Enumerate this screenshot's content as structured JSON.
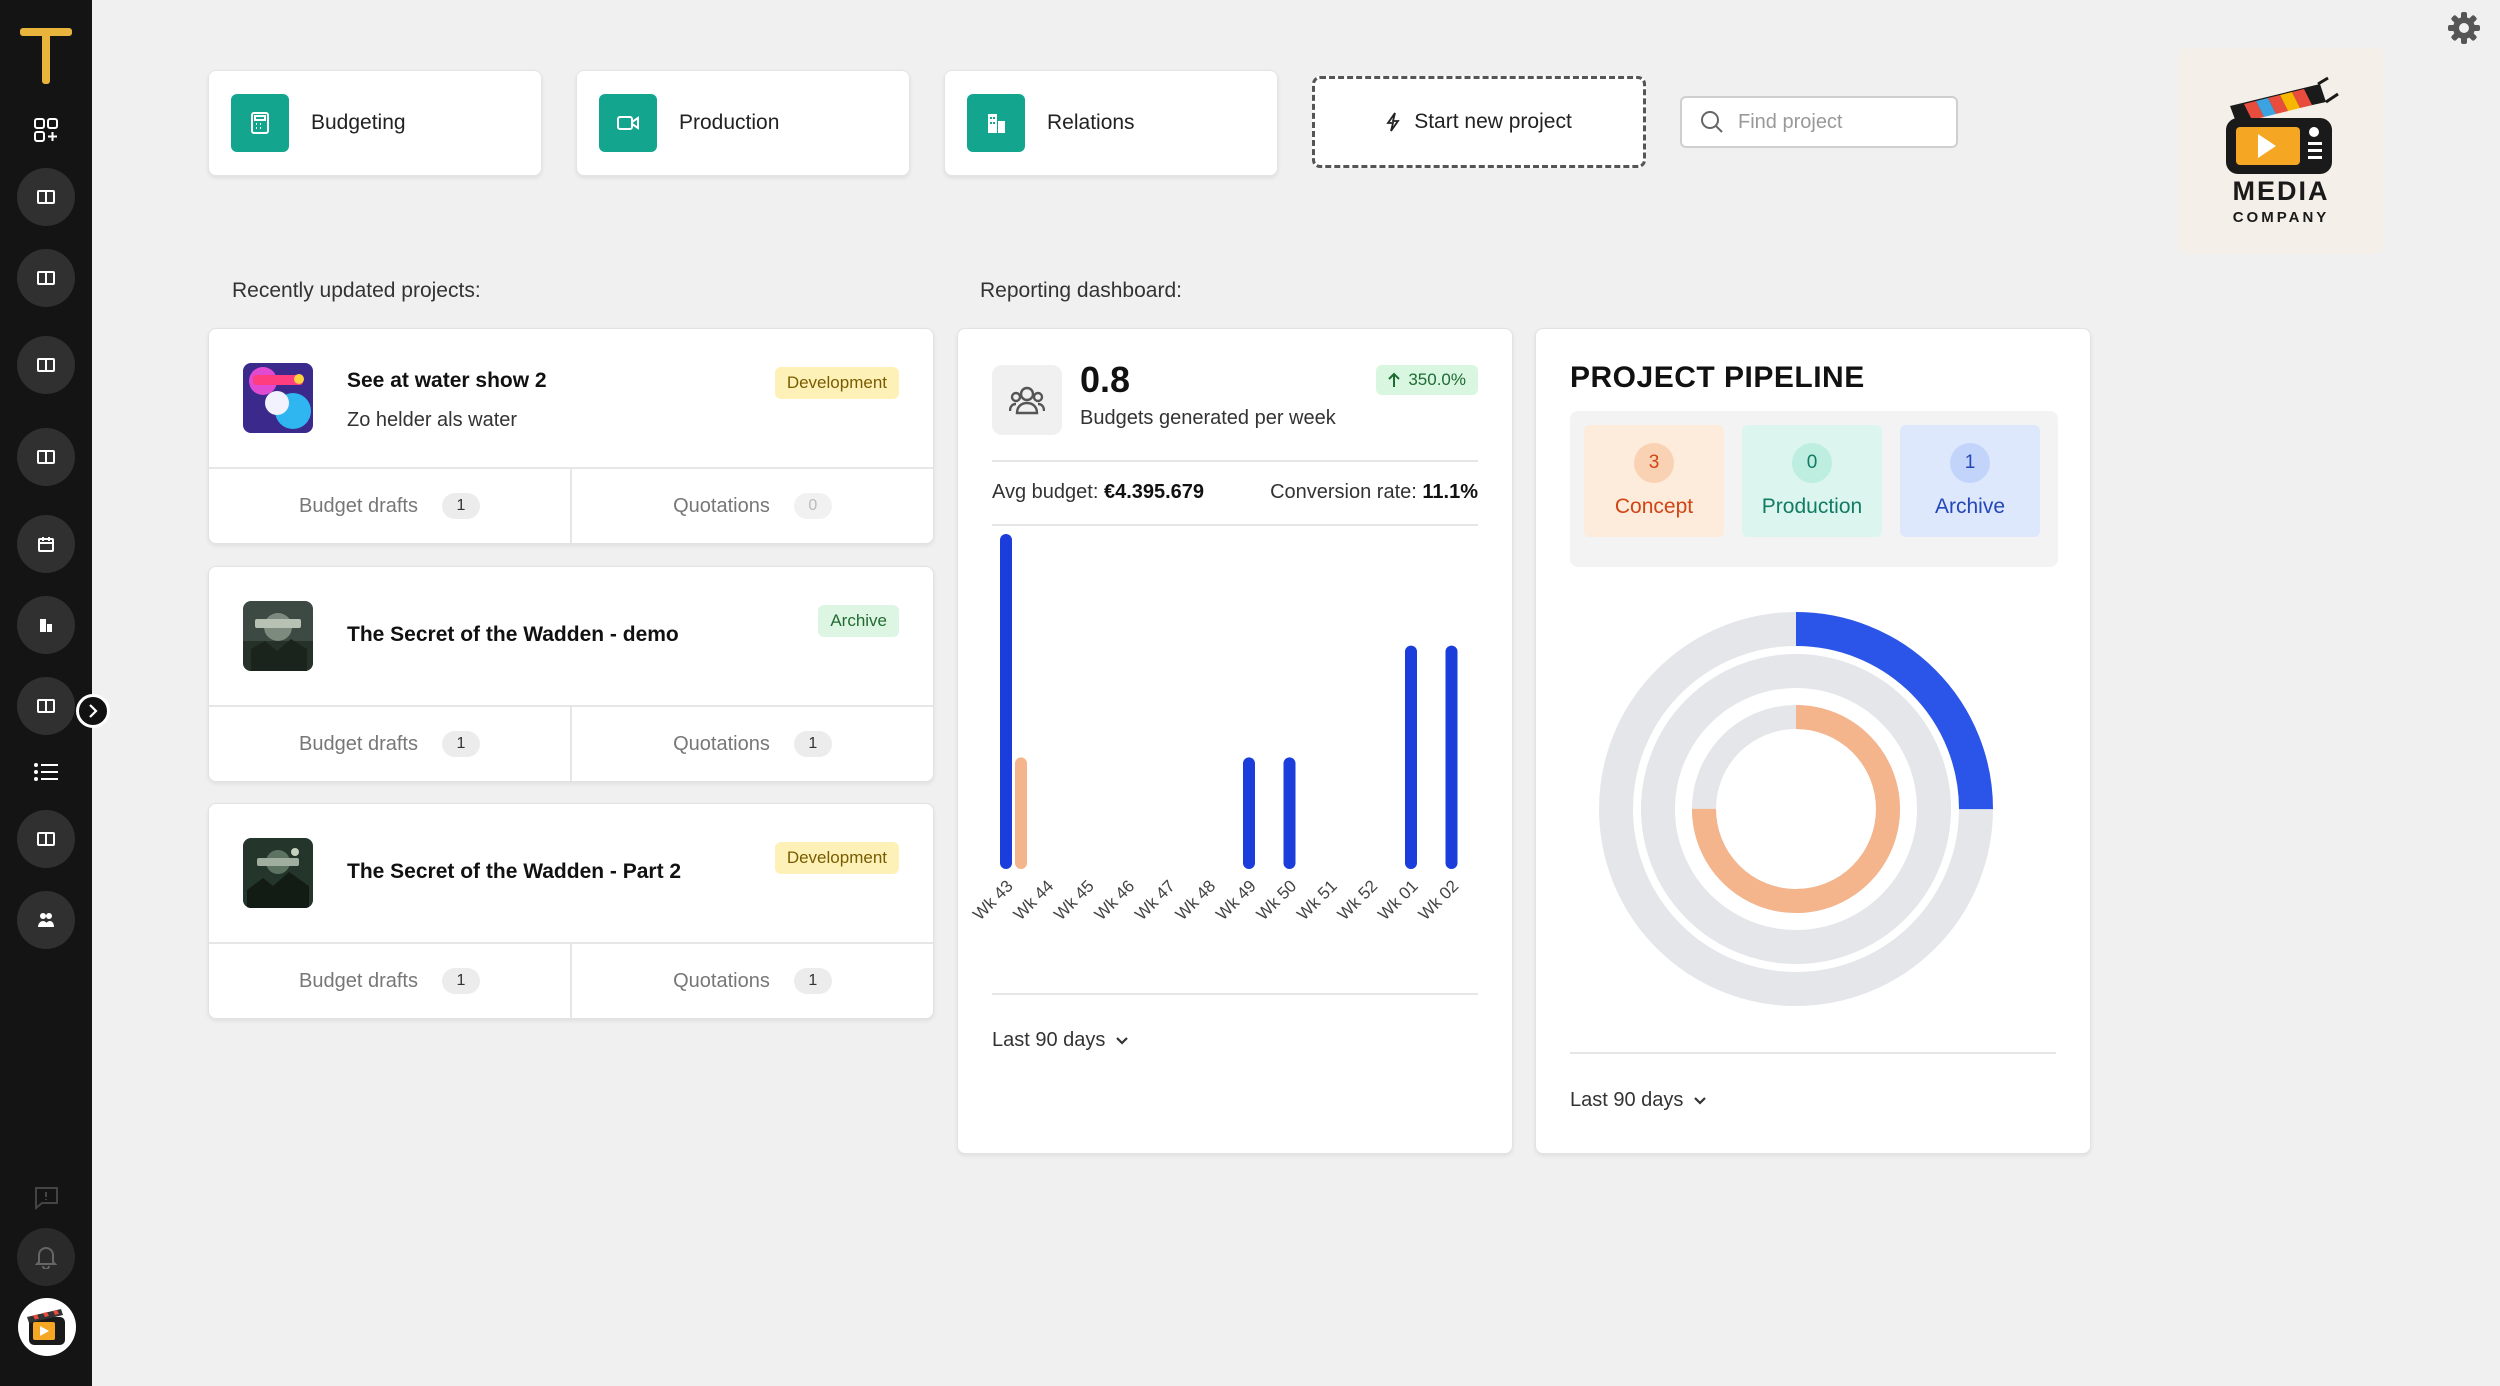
{
  "nav": {
    "budgeting": "Budgeting",
    "production": "Production",
    "relations": "Relations",
    "start_project": "Start new project",
    "search_placeholder": "Find project"
  },
  "company": {
    "name": "MEDIA",
    "subtitle": "COMPANY"
  },
  "sections": {
    "recent": "Recently updated projects:",
    "reporting": "Reporting dashboard:"
  },
  "projects": [
    {
      "title": "See at water show 2",
      "subtitle": "Zo helder als water",
      "status": "Development",
      "budget_label": "Budget drafts",
      "budget_count": "1",
      "quotation_label": "Quotations",
      "quotation_count": "0"
    },
    {
      "title": "The Secret of the Wadden - demo",
      "subtitle": "",
      "status": "Archive",
      "budget_label": "Budget drafts",
      "budget_count": "1",
      "quotation_label": "Quotations",
      "quotation_count": "1"
    },
    {
      "title": "The Secret of the Wadden - Part 2",
      "subtitle": "",
      "status": "Development",
      "budget_label": "Budget drafts",
      "budget_count": "1",
      "quotation_label": "Quotations",
      "quotation_count": "1"
    }
  ],
  "reporting": {
    "value": "0.8",
    "value_label": "Budgets generated per week",
    "growth": "350.0%",
    "avg_label": "Avg budget:",
    "avg_value": "€4.395.679",
    "conv_label": "Conversion rate:",
    "conv_value": "11.1%",
    "period": "Last 90 days"
  },
  "pipeline": {
    "title": "PROJECT PIPELINE",
    "stages": [
      {
        "count": "3",
        "label": "Concept"
      },
      {
        "count": "0",
        "label": "Production"
      },
      {
        "count": "1",
        "label": "Archive"
      }
    ],
    "period": "Last 90 days"
  },
  "chart_data": [
    {
      "type": "bar",
      "categories": [
        "Wk 43",
        "Wk 44",
        "Wk 45",
        "Wk 46",
        "Wk 47",
        "Wk 48",
        "Wk 49",
        "Wk 50",
        "Wk 51",
        "Wk 52",
        "Wk 01",
        "Wk 02"
      ],
      "series": [
        {
          "color": "#1a3ddb",
          "values": [
            3,
            0,
            0,
            0,
            0,
            0,
            1,
            1,
            0,
            0,
            2,
            2
          ]
        },
        {
          "color": "#f4b48c",
          "values": [
            1,
            0,
            0,
            0,
            0,
            0,
            0,
            0,
            0,
            0,
            0,
            0
          ]
        }
      ],
      "ylim": [
        0,
        3
      ]
    },
    {
      "type": "pie",
      "categories": [
        "Concept",
        "Production",
        "Archive"
      ],
      "values": [
        3,
        0,
        1
      ],
      "colors": [
        "#f4b48c",
        "#14a58f",
        "#2b55e8"
      ],
      "track_color": "#e4e6ea"
    }
  ],
  "colors": {
    "accent": "#14a58f",
    "sidebar": "#141414",
    "brand_gold": "#e8b43c"
  }
}
